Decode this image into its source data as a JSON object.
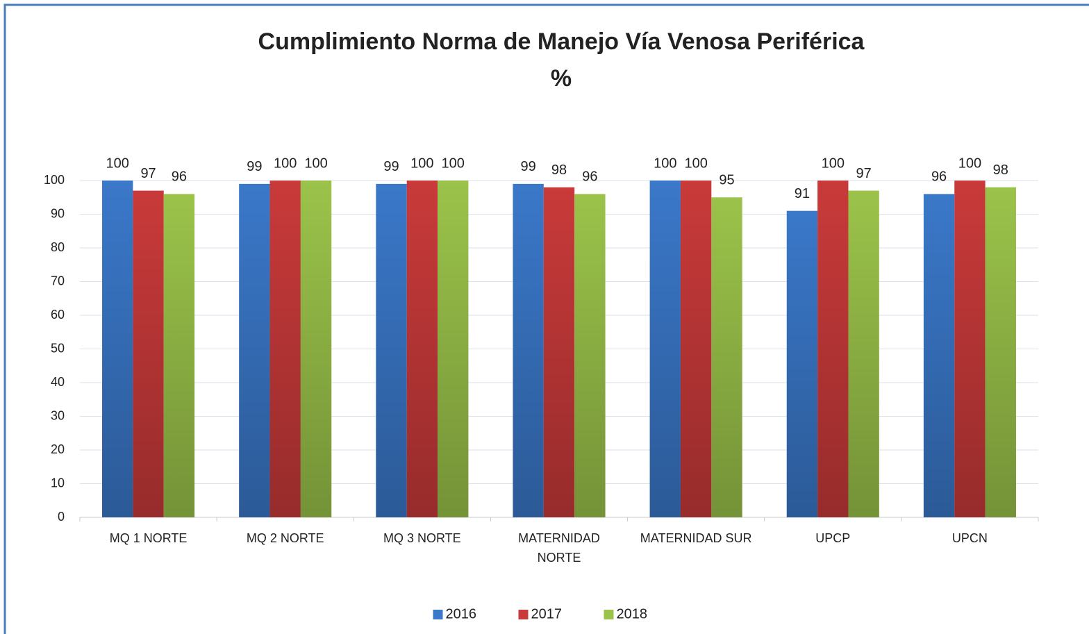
{
  "chart_data": {
    "type": "bar",
    "title": "Cumplimiento Norma de Manejo Vía Venosa Periférica",
    "subtitle": "%",
    "categories": [
      "MQ 1 NORTE",
      "MQ 2 NORTE",
      "MQ 3 NORTE",
      "MATERNIDAD NORTE",
      "MATERNIDAD SUR",
      "UPCP",
      "UPCN"
    ],
    "series": [
      {
        "name": "2016",
        "color": "#3a78c9",
        "values": [
          100,
          99,
          99,
          99,
          100,
          91,
          96
        ]
      },
      {
        "name": "2017",
        "color": "#c93a3a",
        "values": [
          97,
          100,
          100,
          98,
          100,
          100,
          100
        ]
      },
      {
        "name": "2018",
        "color": "#9bc34a",
        "values": [
          96,
          100,
          100,
          96,
          95,
          97,
          98
        ]
      }
    ],
    "ylim": [
      0,
      100
    ],
    "yticks": [
      0,
      10,
      20,
      30,
      40,
      50,
      60,
      70,
      80,
      90,
      100
    ],
    "grid": true,
    "legend": "bottom"
  }
}
